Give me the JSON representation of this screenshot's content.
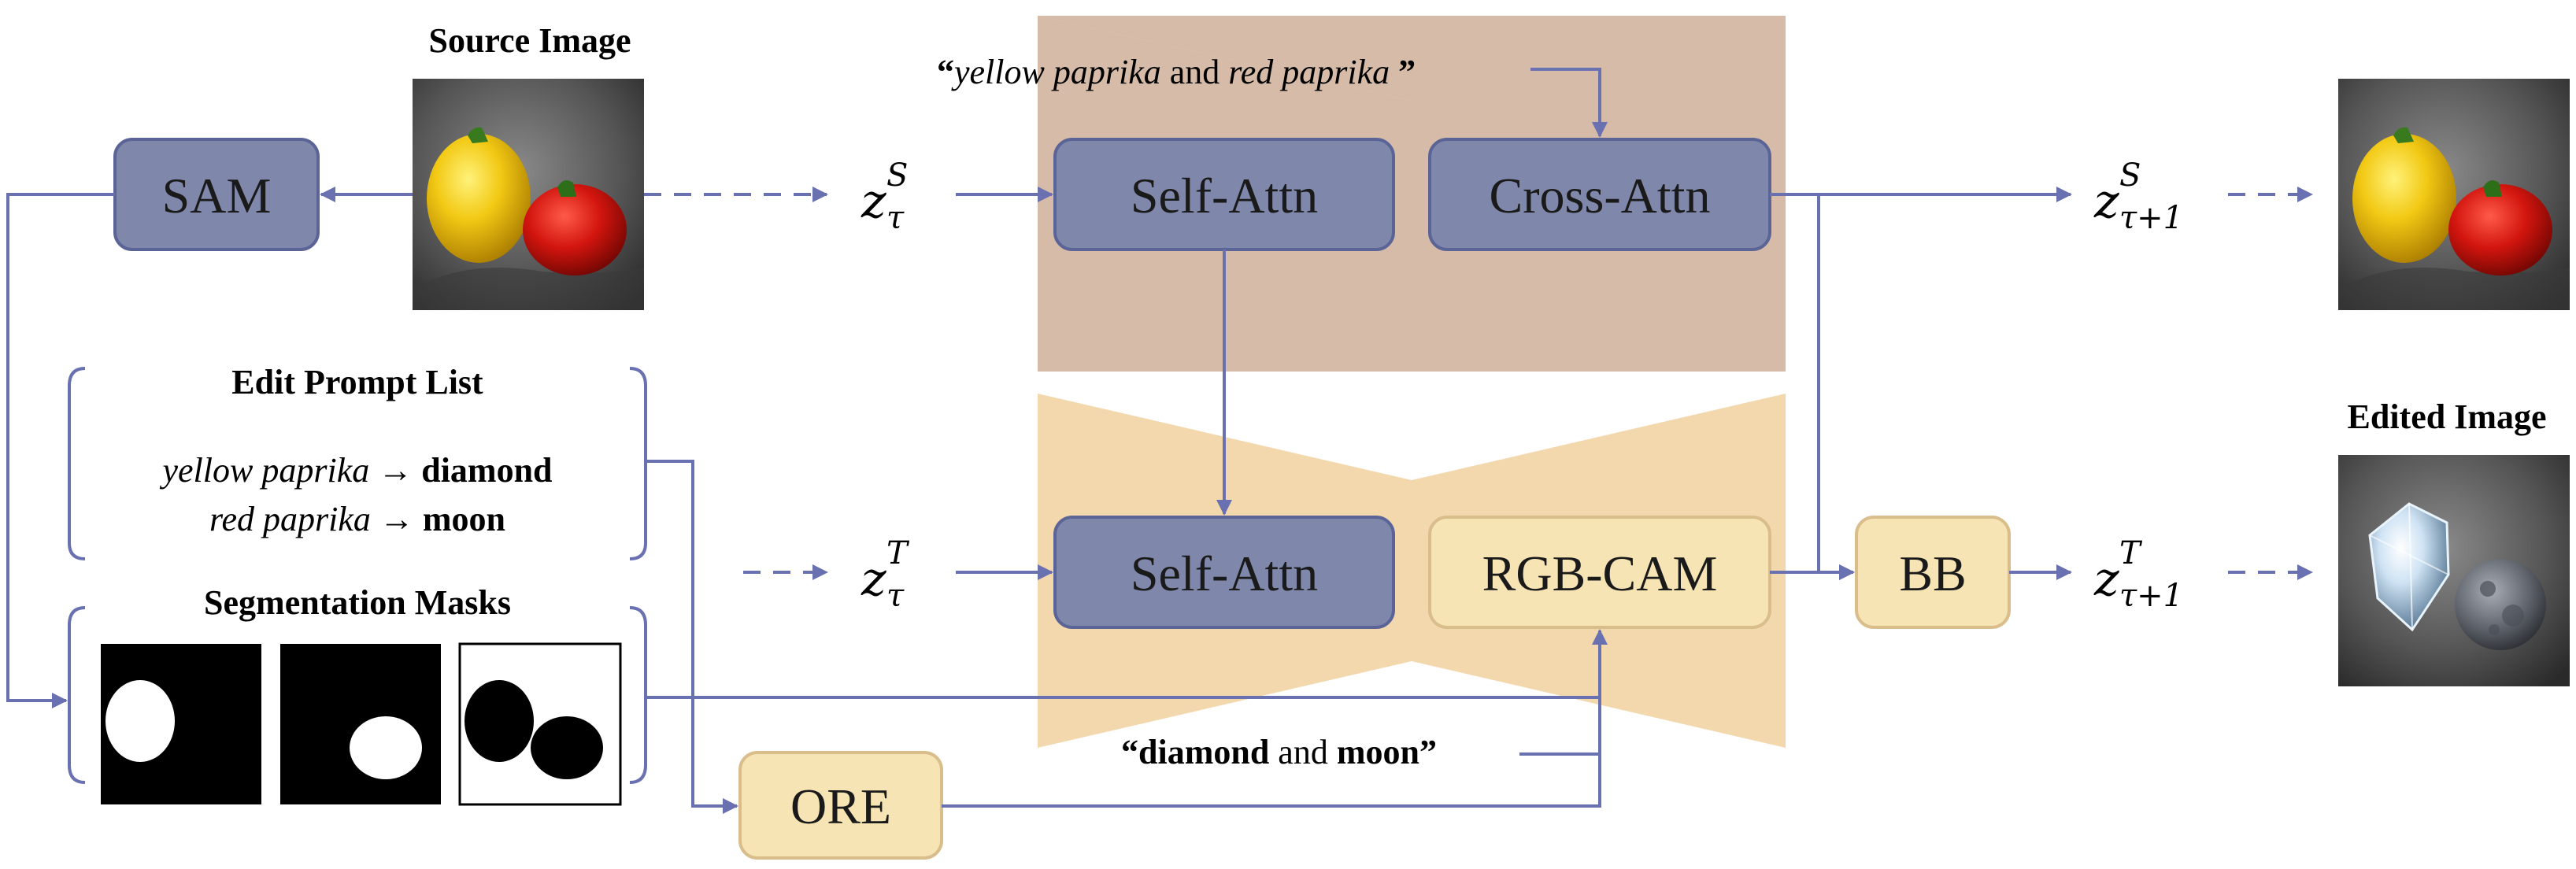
{
  "blocks": {
    "sam": "SAM",
    "self_attn_top": "Self-Attn",
    "cross_attn": "Cross-Attn",
    "self_attn_bottom": "Self-Attn",
    "rgb_cam": "RGB-CAM",
    "bb": "BB",
    "ore": "ORE"
  },
  "labels": {
    "source_image": "Source Image",
    "edited_image": "Edited Image",
    "edit_prompt_list": "Edit Prompt List",
    "segmentation_masks": "Segmentation Masks"
  },
  "edit_prompts": [
    {
      "source": "yellow paprika",
      "arrow": "→",
      "target": "diamond"
    },
    {
      "source": "red paprika",
      "arrow": "→",
      "target": "moon"
    }
  ],
  "source_prompt": {
    "open_quote": "“",
    "part1": "yellow paprika",
    "mid": " and ",
    "part2": "red paprika",
    "close_quote": " ”"
  },
  "target_prompt": {
    "open_quote": "“",
    "part1": "diamond",
    "mid": " and ",
    "part2": "moon",
    "close_quote": "”"
  },
  "latents": {
    "z_s_t": {
      "base": "z",
      "sup": "S",
      "sub": "τ"
    },
    "z_t_t": {
      "base": "z",
      "sup": "T",
      "sub": "τ"
    },
    "z_s_t1": {
      "base": "z",
      "sup": "S",
      "sub": "τ+1"
    },
    "z_t_t1": {
      "base": "z",
      "sup": "T",
      "sub": "τ+1"
    }
  },
  "colors": {
    "blue_box": "#7f88ab",
    "blue_stroke": "#5b6496",
    "yellow_box": "#f6e4b4",
    "yellow_stroke": "#d9bd8b",
    "arrow": "#6a71b0",
    "top_band": "#d6bba8",
    "bottom_band": "#f3d8ae"
  }
}
